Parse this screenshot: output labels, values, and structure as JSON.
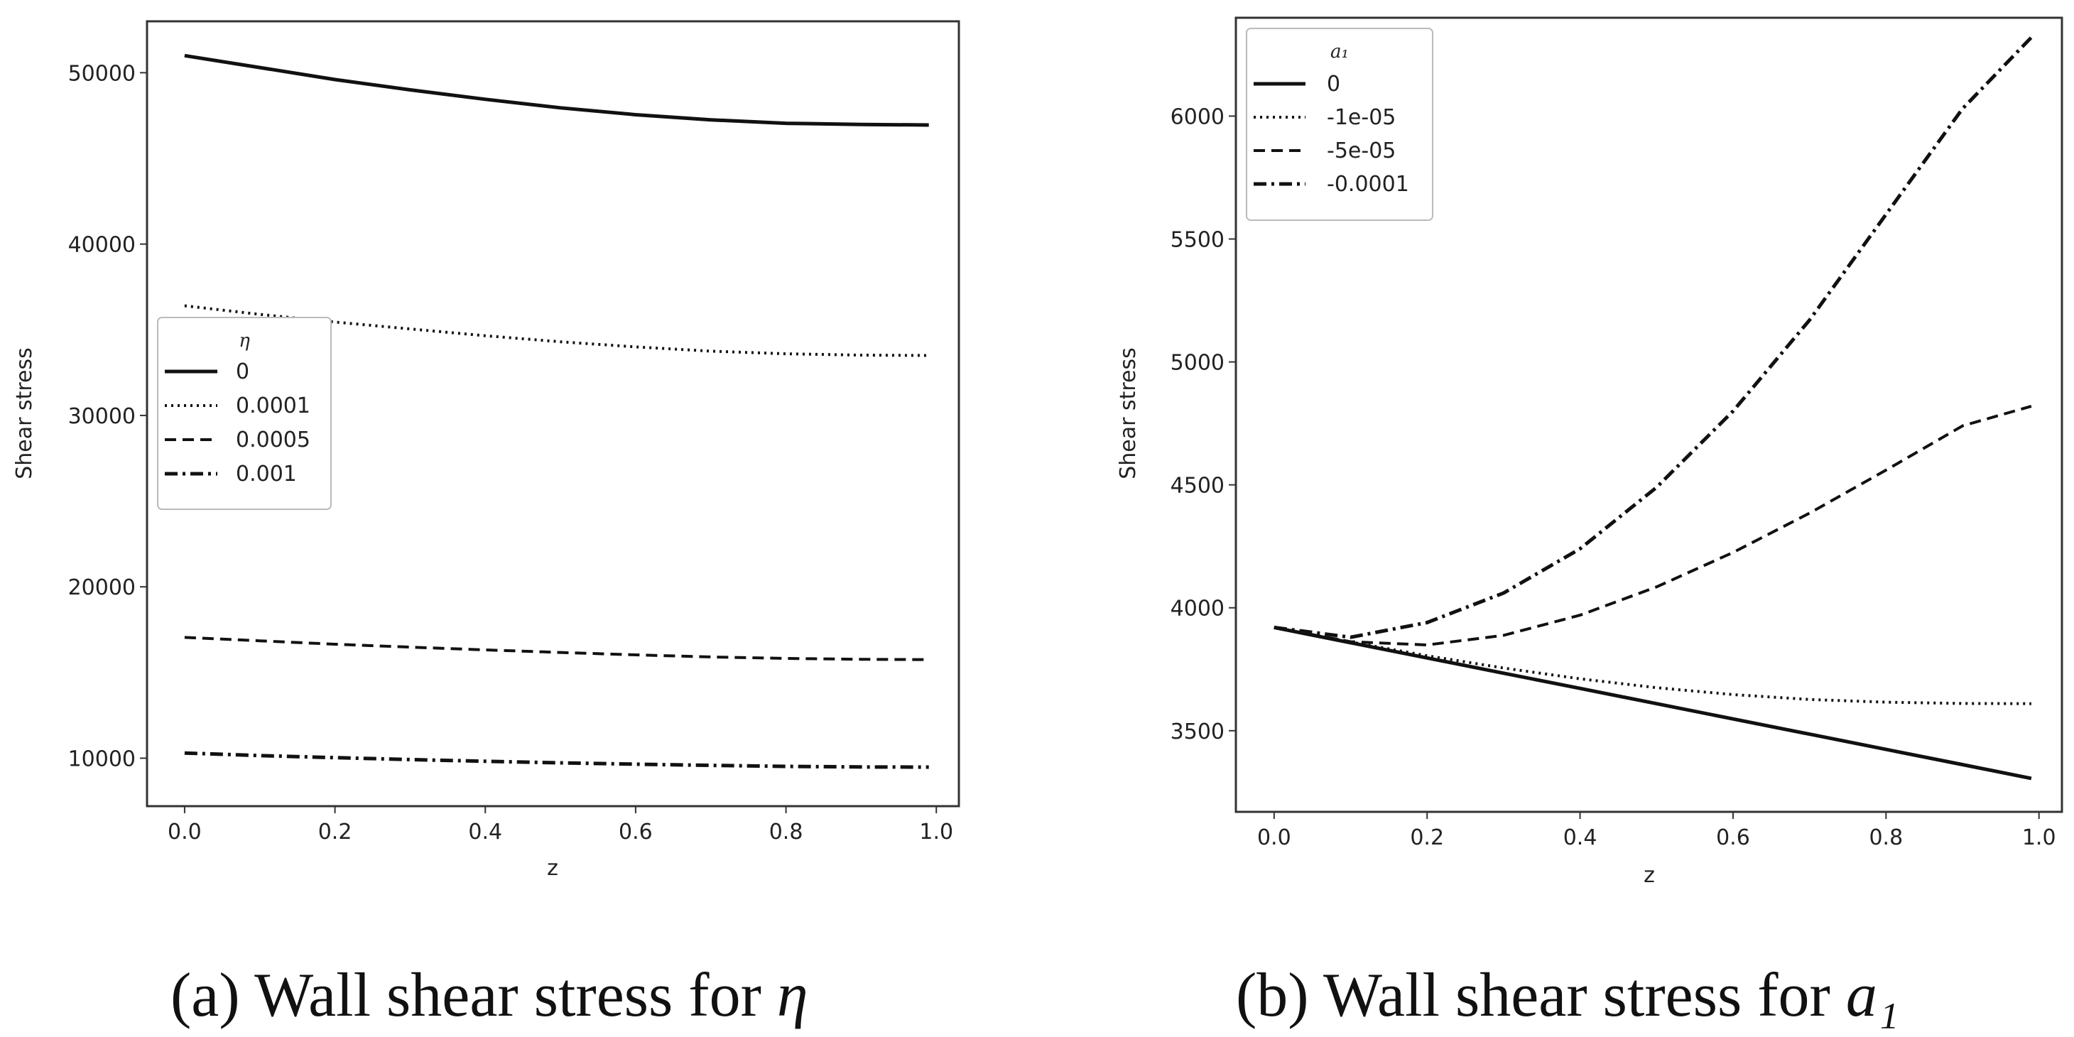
{
  "chart_data": [
    {
      "type": "line",
      "title": "",
      "xlabel": "z",
      "ylabel": "Shear stress",
      "xlim": [
        -0.05,
        1.03
      ],
      "ylim": [
        7200,
        53000
      ],
      "xticks": [
        0.0,
        0.2,
        0.4,
        0.6,
        0.8,
        1.0
      ],
      "xtick_labels": [
        "0.0",
        "0.2",
        "0.4",
        "0.6",
        "0.8",
        "1.0"
      ],
      "yticks": [
        10000,
        20000,
        30000,
        40000,
        50000
      ],
      "ytick_labels": [
        "10000",
        "20000",
        "30000",
        "40000",
        "50000"
      ],
      "legend": {
        "title": "η",
        "placement": "center-left"
      },
      "x": [
        0.0,
        0.1,
        0.2,
        0.3,
        0.4,
        0.5,
        0.6,
        0.7,
        0.8,
        0.9,
        0.99
      ],
      "series": [
        {
          "name": "0",
          "style": "solid",
          "values": [
            51000,
            50300,
            49600,
            49000,
            48450,
            47950,
            47550,
            47250,
            47050,
            46980,
            46950
          ]
        },
        {
          "name": "0.0001",
          "style": "dotted",
          "values": [
            36400,
            35900,
            35450,
            35050,
            34650,
            34300,
            34000,
            33750,
            33600,
            33520,
            33500
          ]
        },
        {
          "name": "0.0005",
          "style": "dashed",
          "values": [
            17050,
            16850,
            16650,
            16480,
            16320,
            16170,
            16030,
            15910,
            15820,
            15770,
            15750
          ]
        },
        {
          "name": "0.001",
          "style": "dashdot",
          "values": [
            10300,
            10150,
            10030,
            9920,
            9820,
            9730,
            9650,
            9580,
            9520,
            9490,
            9480
          ]
        }
      ]
    },
    {
      "type": "line",
      "title": "",
      "xlabel": "z",
      "ylabel": "Shear stress",
      "xlim": [
        -0.05,
        1.03
      ],
      "ylim": [
        3170,
        6400
      ],
      "xticks": [
        0.0,
        0.2,
        0.4,
        0.6,
        0.8,
        1.0
      ],
      "xtick_labels": [
        "0.0",
        "0.2",
        "0.4",
        "0.6",
        "0.8",
        "1.0"
      ],
      "yticks": [
        3500,
        4000,
        4500,
        5000,
        5500,
        6000
      ],
      "ytick_labels": [
        "3500",
        "4000",
        "4500",
        "5000",
        "5500",
        "6000"
      ],
      "legend": {
        "title": "a₁",
        "placement": "top-left"
      },
      "x": [
        0.0,
        0.1,
        0.2,
        0.3,
        0.4,
        0.5,
        0.6,
        0.7,
        0.8,
        0.9,
        0.99
      ],
      "series": [
        {
          "name": "0",
          "style": "solid",
          "values": [
            3920,
            3858,
            3796,
            3734,
            3672,
            3610,
            3548,
            3486,
            3424,
            3362,
            3306
          ]
        },
        {
          "name": "-1e-05",
          "style": "dotted",
          "values": [
            3920,
            3861,
            3805,
            3755,
            3711,
            3675,
            3647,
            3627,
            3616,
            3611,
            3610
          ]
        },
        {
          "name": "-5e-05",
          "style": "dashed",
          "values": [
            3920,
            3862,
            3849,
            3888,
            3970,
            4085,
            4225,
            4385,
            4560,
            4740,
            4820
          ]
        },
        {
          "name": "-0.0001",
          "style": "dashdot",
          "values": [
            3920,
            3880,
            3940,
            4060,
            4240,
            4490,
            4800,
            5170,
            5600,
            6030,
            6320
          ]
        }
      ]
    }
  ],
  "captions": [
    {
      "text": "(a) Wall shear stress for ",
      "symbol": "η"
    },
    {
      "text": "(b) Wall shear stress for ",
      "symbol": "a₁"
    }
  ]
}
